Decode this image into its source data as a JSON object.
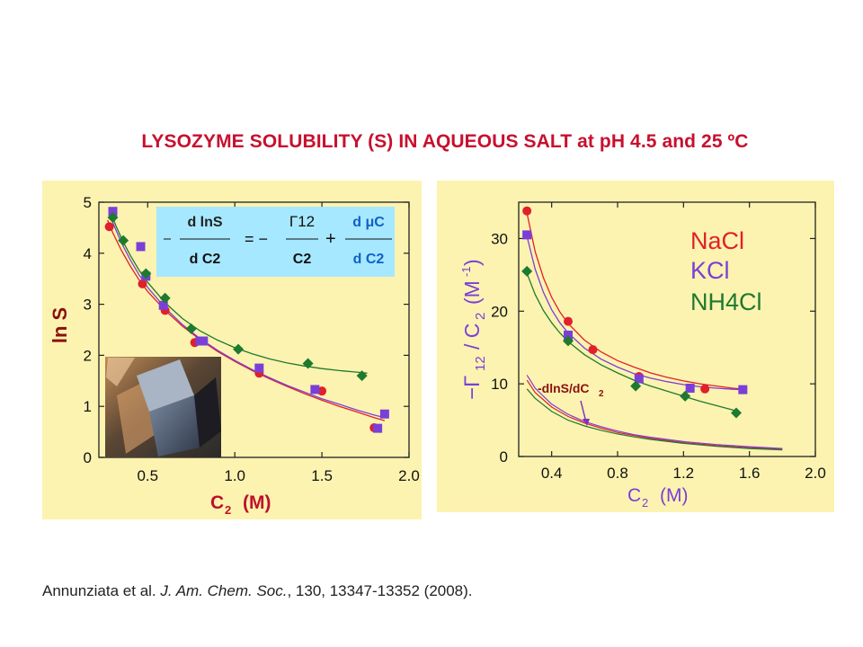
{
  "title": "LYSOZYME SOLUBILITY (S) IN AQUEOUS SALT at pH 4.5 and 25 ºC",
  "citation": {
    "authors": "Annunziata et al.",
    "journal": "J. Am. Chem. Soc.",
    "details": ", 130, 13347-13352 (2008)."
  },
  "colors": {
    "NaCl": "#e0202a",
    "KCl": "#7a3fd8",
    "NH4Cl": "#1e7a2e",
    "title": "#c8102e",
    "panel_bg": "#fcf3b0",
    "equation_bg": "#a6e8ff"
  },
  "equation": {
    "lhs_num": "d lnS",
    "lhs_den": "d C2",
    "mid_num": "Γ12",
    "mid_den": "C2",
    "rhs_num": "d μC",
    "rhs_den": "d C2"
  },
  "inset_image": "lysozyme-crystal-photo",
  "chart_data": [
    {
      "type": "scatter",
      "name": "left",
      "xlabel": "C2 (M)",
      "ylabel": "ln S",
      "xlim": [
        0.22,
        2.0
      ],
      "ylim": [
        0,
        5
      ],
      "xticks": [
        "0.5",
        "1.0",
        "1.5",
        "2.0"
      ],
      "xtick_values": [
        0.5,
        1.0,
        1.5,
        2.0
      ],
      "yticks": [
        "0",
        "1",
        "2",
        "3",
        "4",
        "5"
      ],
      "ytick_values": [
        0,
        1,
        2,
        3,
        4,
        5
      ],
      "series": [
        {
          "name": "NaCl",
          "color": "#e0202a",
          "marker": "circle",
          "x": [
            0.28,
            0.47,
            0.6,
            0.77,
            1.14,
            1.5,
            1.8
          ],
          "y": [
            4.52,
            3.4,
            2.88,
            2.25,
            1.65,
            1.3,
            0.58
          ],
          "fit_x": [
            0.27,
            0.3,
            0.35,
            0.4,
            0.45,
            0.5,
            0.6,
            0.7,
            0.8,
            0.9,
            1.0,
            1.1,
            1.2,
            1.3,
            1.4,
            1.5,
            1.6,
            1.7,
            1.8,
            1.86
          ],
          "fit_y": [
            4.65,
            4.4,
            4.05,
            3.75,
            3.48,
            3.25,
            2.88,
            2.57,
            2.31,
            2.08,
            1.88,
            1.7,
            1.54,
            1.39,
            1.25,
            1.12,
            1.0,
            0.89,
            0.78,
            0.72
          ]
        },
        {
          "name": "KCl",
          "color": "#7a3fd8",
          "marker": "square",
          "x": [
            0.3,
            0.46,
            0.49,
            0.59,
            0.8,
            0.82,
            1.14,
            1.46,
            1.82,
            1.86
          ],
          "y": [
            4.82,
            4.13,
            3.55,
            2.98,
            2.28,
            2.28,
            1.75,
            1.33,
            0.57,
            0.85
          ],
          "fit_x": [
            0.28,
            0.3,
            0.35,
            0.4,
            0.45,
            0.5,
            0.6,
            0.7,
            0.8,
            0.9,
            1.0,
            1.1,
            1.2,
            1.3,
            1.4,
            1.5,
            1.6,
            1.7,
            1.8,
            1.86
          ],
          "fit_y": [
            4.85,
            4.6,
            4.2,
            3.87,
            3.58,
            3.33,
            2.93,
            2.6,
            2.33,
            2.1,
            1.9,
            1.72,
            1.56,
            1.41,
            1.28,
            1.15,
            1.04,
            0.93,
            0.83,
            0.78
          ]
        },
        {
          "name": "NH4Cl",
          "color": "#1e7a2e",
          "marker": "diamond",
          "x": [
            0.3,
            0.36,
            0.49,
            0.6,
            0.75,
            1.02,
            1.42,
            1.73
          ],
          "y": [
            4.7,
            4.25,
            3.6,
            3.12,
            2.52,
            2.12,
            1.84,
            1.6
          ],
          "fit_x": [
            0.29,
            0.32,
            0.36,
            0.4,
            0.45,
            0.5,
            0.6,
            0.7,
            0.8,
            0.9,
            1.0,
            1.1,
            1.2,
            1.3,
            1.4,
            1.5,
            1.6,
            1.7,
            1.76
          ],
          "fit_y": [
            4.78,
            4.52,
            4.22,
            3.96,
            3.67,
            3.43,
            3.03,
            2.72,
            2.48,
            2.3,
            2.15,
            2.03,
            1.93,
            1.85,
            1.79,
            1.74,
            1.7,
            1.67,
            1.65
          ]
        }
      ]
    },
    {
      "type": "scatter",
      "name": "right",
      "xlabel": "C2 (M)",
      "ylabel": "-Γ12 / C2 (M-1)",
      "xlim": [
        0.2,
        2.0
      ],
      "ylim": [
        0,
        35
      ],
      "xticks": [
        "0.4",
        "0.8",
        "1.2",
        "1.6",
        "2.0"
      ],
      "xtick_values": [
        0.4,
        0.8,
        1.2,
        1.6,
        2.0
      ],
      "yticks": [
        "0",
        "10",
        "20",
        "30"
      ],
      "ytick_values": [
        0,
        10,
        20,
        30
      ],
      "legend": [
        "NaCl",
        "KCl",
        "NH4Cl"
      ],
      "legend_position": "top-right",
      "annotation": "-dlnS/dC2",
      "series": [
        {
          "name": "NaCl",
          "color": "#e0202a",
          "marker": "circle",
          "x": [
            0.25,
            0.5,
            0.65,
            0.93,
            1.33
          ],
          "y": [
            33.8,
            18.6,
            14.7,
            11.0,
            9.3
          ],
          "fit_x": [
            0.25,
            0.3,
            0.35,
            0.4,
            0.45,
            0.5,
            0.6,
            0.7,
            0.8,
            0.9,
            1.0,
            1.1,
            1.2,
            1.3,
            1.4,
            1.5,
            1.55
          ],
          "fit_y": [
            33.5,
            28.2,
            24.6,
            21.9,
            19.9,
            18.3,
            16.0,
            14.4,
            13.2,
            12.3,
            11.5,
            10.9,
            10.4,
            10.0,
            9.7,
            9.4,
            9.3
          ],
          "deriv_x": [
            0.25,
            0.3,
            0.4,
            0.5,
            0.6,
            0.7,
            0.8,
            0.9,
            1.0,
            1.2,
            1.4,
            1.6,
            1.8
          ],
          "deriv_y": [
            10.5,
            8.8,
            6.8,
            5.5,
            4.6,
            3.9,
            3.3,
            2.9,
            2.5,
            1.9,
            1.5,
            1.2,
            1.0
          ]
        },
        {
          "name": "KCl",
          "color": "#7a3fd8",
          "marker": "square",
          "x": [
            0.25,
            0.5,
            0.93,
            1.24,
            1.56
          ],
          "y": [
            30.5,
            16.7,
            10.7,
            9.4,
            9.2
          ],
          "fit_x": [
            0.25,
            0.3,
            0.35,
            0.4,
            0.45,
            0.5,
            0.6,
            0.7,
            0.8,
            0.9,
            1.0,
            1.1,
            1.2,
            1.3,
            1.4,
            1.5,
            1.56
          ],
          "fit_y": [
            30.3,
            25.8,
            22.6,
            20.2,
            18.4,
            17.0,
            14.9,
            13.4,
            12.3,
            11.4,
            10.8,
            10.3,
            9.9,
            9.6,
            9.4,
            9.25,
            9.2
          ],
          "deriv_x": [
            0.25,
            0.3,
            0.4,
            0.5,
            0.6,
            0.7,
            0.8,
            0.9,
            1.0,
            1.2,
            1.4,
            1.6,
            1.8
          ],
          "deriv_y": [
            11.2,
            9.4,
            7.2,
            5.8,
            4.8,
            4.1,
            3.5,
            3.0,
            2.65,
            2.05,
            1.65,
            1.35,
            1.1
          ]
        },
        {
          "name": "NH4Cl",
          "color": "#1e7a2e",
          "marker": "diamond",
          "x": [
            0.25,
            0.5,
            0.91,
            1.21,
            1.52
          ],
          "y": [
            25.5,
            15.9,
            9.7,
            8.3,
            6.0
          ],
          "fit_x": [
            0.25,
            0.3,
            0.35,
            0.4,
            0.45,
            0.5,
            0.6,
            0.7,
            0.8,
            0.9,
            1.0,
            1.1,
            1.2,
            1.3,
            1.4,
            1.5,
            1.53
          ],
          "fit_y": [
            25.2,
            22.3,
            20.1,
            18.4,
            17.0,
            15.8,
            14.0,
            12.6,
            11.5,
            10.5,
            9.7,
            9.0,
            8.3,
            7.6,
            7.0,
            6.4,
            6.2
          ],
          "deriv_x": [
            0.25,
            0.3,
            0.4,
            0.5,
            0.6,
            0.7,
            0.8,
            0.9,
            1.0,
            1.2,
            1.4,
            1.6,
            1.8
          ],
          "deriv_y": [
            9.3,
            8.0,
            6.2,
            5.0,
            4.2,
            3.6,
            3.1,
            2.7,
            2.35,
            1.8,
            1.4,
            1.1,
            0.9
          ]
        }
      ]
    }
  ]
}
